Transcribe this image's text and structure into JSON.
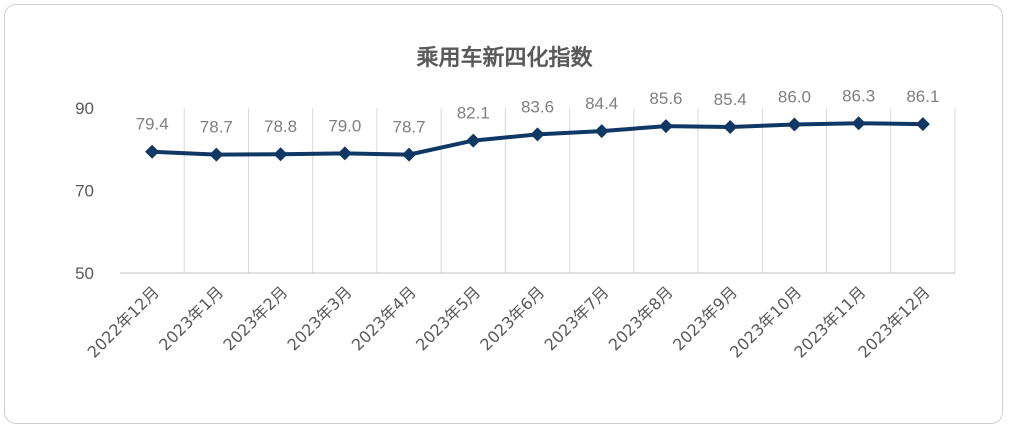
{
  "chart_data": {
    "type": "line",
    "title": "乘用车新四化指数",
    "xlabel": "",
    "ylabel": "",
    "categories": [
      "2022年12月",
      "2023年1月",
      "2023年2月",
      "2023年3月",
      "2023年4月",
      "2023年5月",
      "2023年6月",
      "2023年7月",
      "2023年8月",
      "2023年9月",
      "2023年10月",
      "2023年11月",
      "2023年12月"
    ],
    "series": [
      {
        "values": [
          79.4,
          78.7,
          78.8,
          79.0,
          78.7,
          82.1,
          83.6,
          84.4,
          85.6,
          85.4,
          86.0,
          86.3,
          86.1
        ],
        "labels": [
          "79.4",
          "78.7",
          "78.8",
          "79.0",
          "78.7",
          "82.1",
          "83.6",
          "84.4",
          "85.6",
          "85.4",
          "86.0",
          "86.3",
          "86.1"
        ],
        "color": "#0f3864",
        "marker": "diamond"
      }
    ],
    "ylim": [
      50,
      90
    ],
    "yticks": [
      "50",
      "70",
      "90"
    ],
    "grid": "vertical",
    "legend": "none",
    "colors": {
      "line": "#0f3864",
      "grid": "#d9d9d9",
      "axis": "#bfbfbf",
      "text": "#595959",
      "label": "#7f7f7f"
    }
  }
}
